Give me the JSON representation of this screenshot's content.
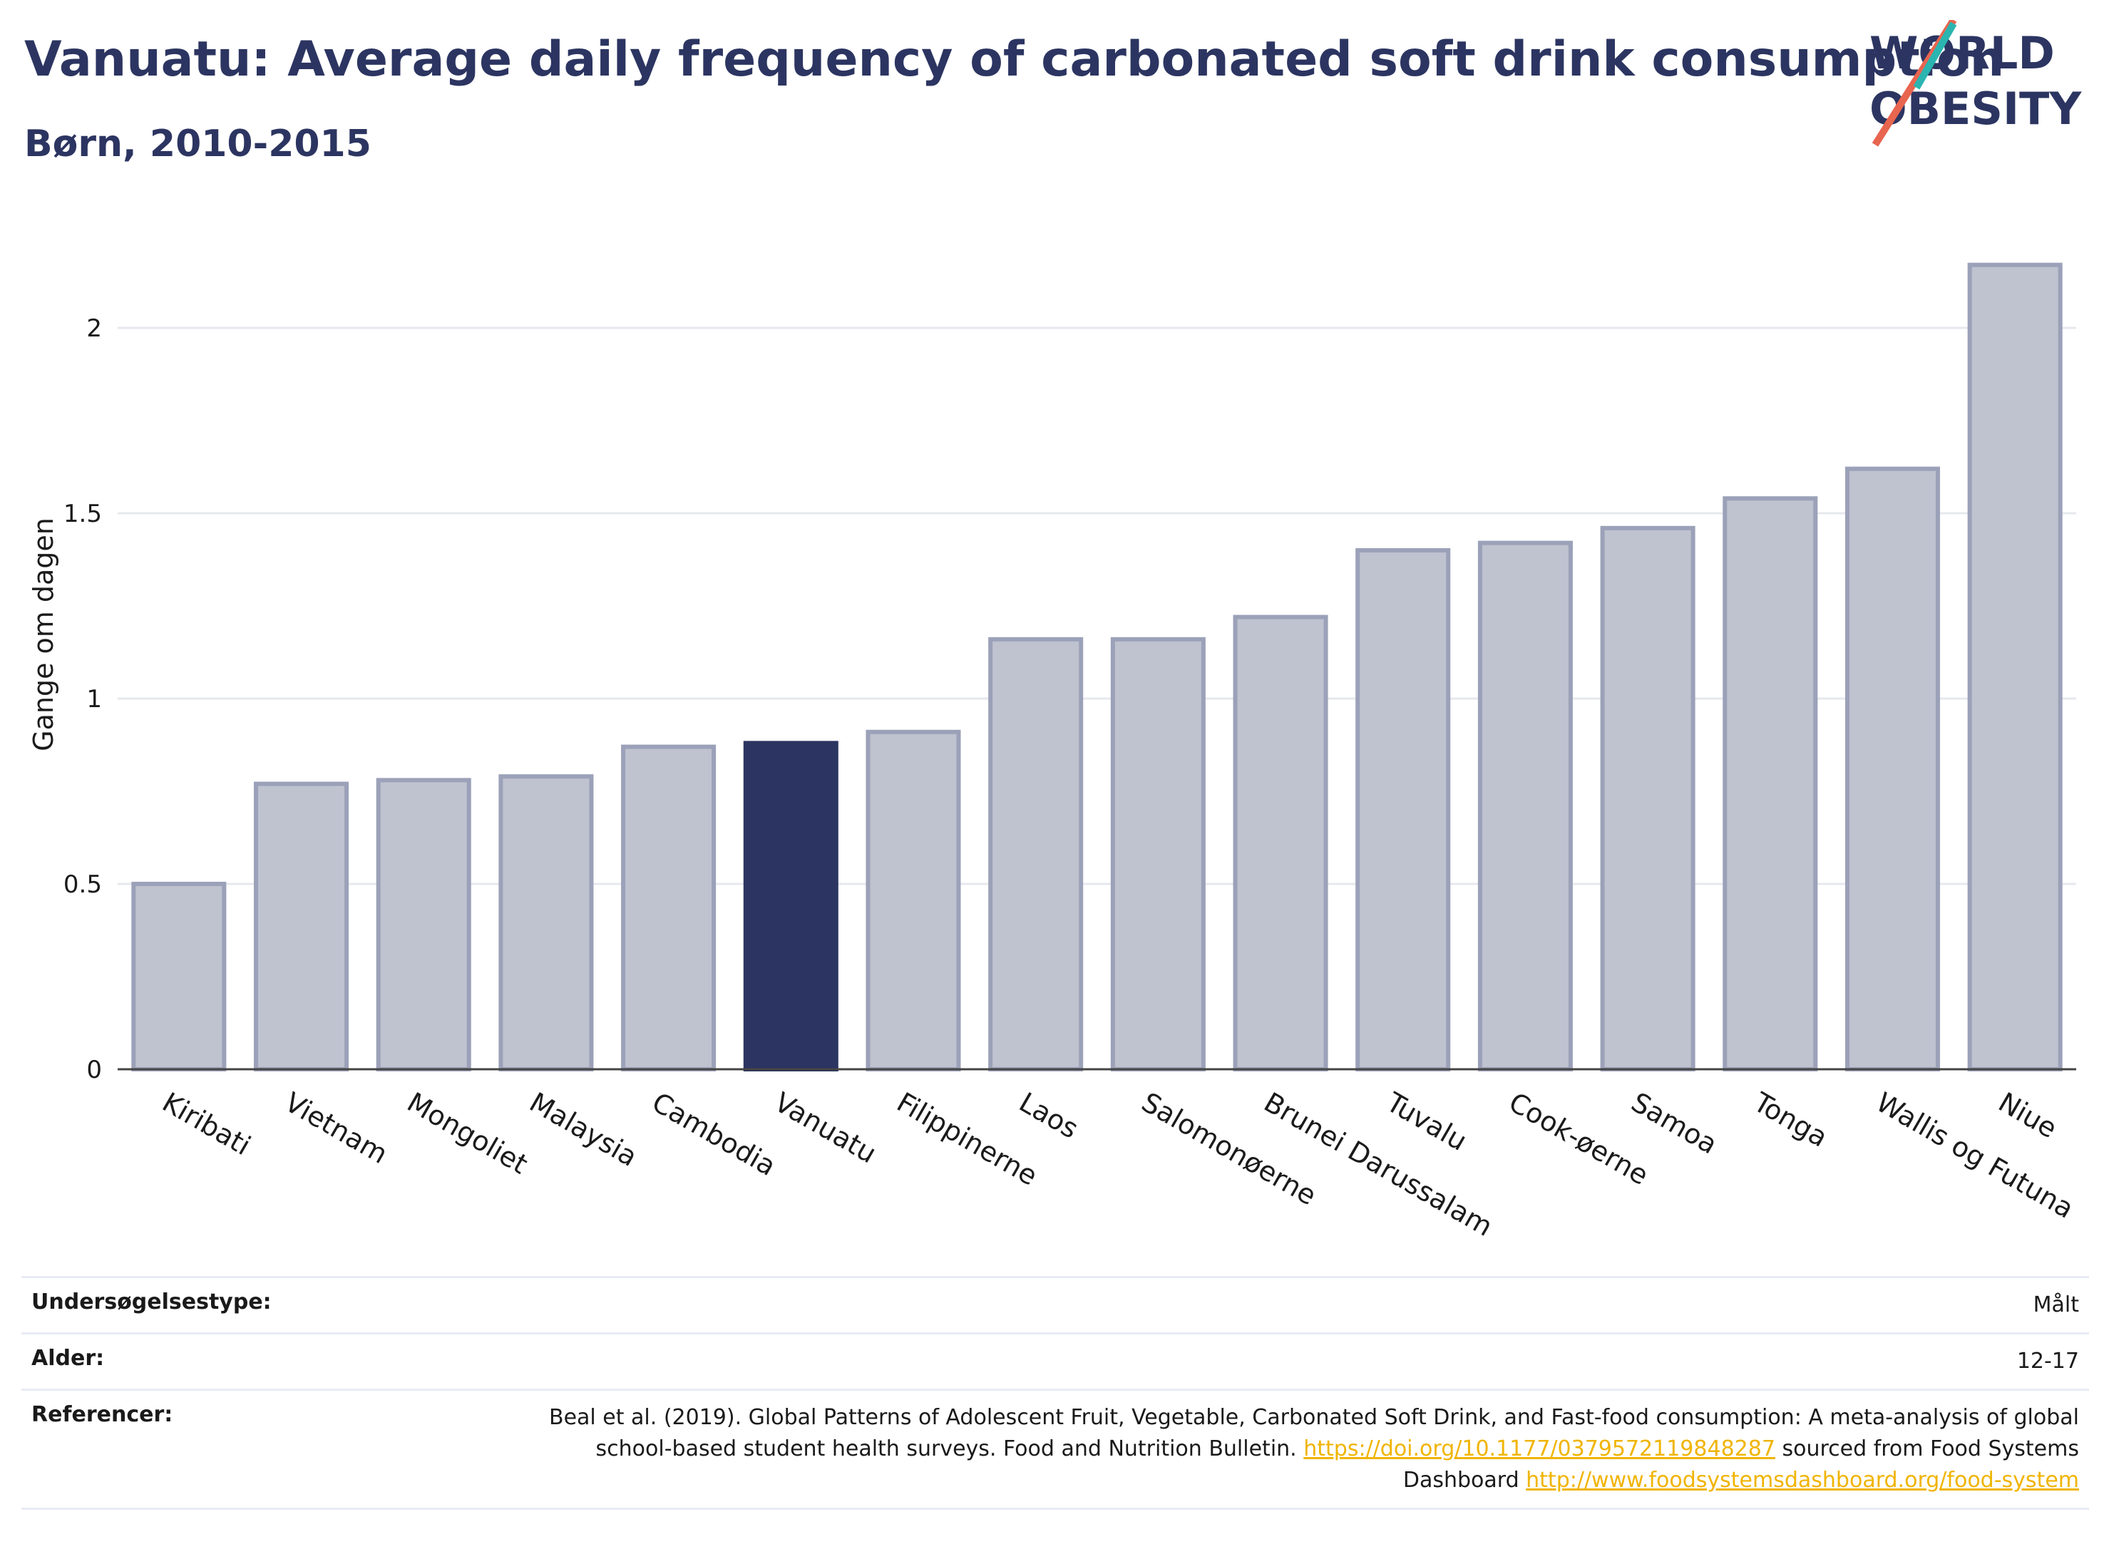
{
  "header": {
    "title": "Vanuatu: Average daily frequency of carbonated soft drink consumption",
    "subtitle": "Børn, 2010-2015"
  },
  "logo": {
    "line1": "WORLD",
    "line2": "OBESITY"
  },
  "chart_data": {
    "type": "bar",
    "categories": [
      "Kiribati",
      "Vietnam",
      "Mongoliet",
      "Malaysia",
      "Cambodia",
      "Vanuatu",
      "Filippinerne",
      "Laos",
      "Salomonøerne",
      "Brunei Darussalam",
      "Tuvalu",
      "Cook-øerne",
      "Samoa",
      "Tonga",
      "Wallis og Futuna",
      "Niue"
    ],
    "values": [
      0.5,
      0.77,
      0.78,
      0.79,
      0.87,
      0.88,
      0.91,
      1.16,
      1.16,
      1.22,
      1.4,
      1.42,
      1.46,
      1.54,
      1.62,
      2.17
    ],
    "highlight": "Vanuatu",
    "ylabel": "Gange om dagen",
    "xlabel": "",
    "ylim": [
      0,
      2.25
    ],
    "yticks": [
      0,
      0.5,
      1,
      1.5,
      2
    ],
    "ytick_labels": [
      "0",
      "0.5",
      "1",
      "1.5",
      "2"
    ],
    "grid": true,
    "colors": {
      "bar": "#bfc2cf",
      "bar_border": "#9ba1b8",
      "highlight": "#2c3561"
    }
  },
  "info": {
    "rows": [
      {
        "key": "Undersøgelsestype:",
        "value": "Målt"
      },
      {
        "key": "Alder:",
        "value": "12-17"
      }
    ],
    "references": {
      "key": "Referencer:",
      "text1": "Beal et al. (2019). Global Patterns of Adolescent Fruit, Vegetable, Carbonated Soft Drink, and Fast-food consumption: A meta-analysis of global school-based student health surveys. Food and Nutrition Bulletin. ",
      "link1": "https://doi.org/10.1177/0379572119848287",
      "text2": " sourced from Food Systems Dashboard ",
      "link2": "http://www.foodsystemsdashboard.org/food-system"
    }
  }
}
